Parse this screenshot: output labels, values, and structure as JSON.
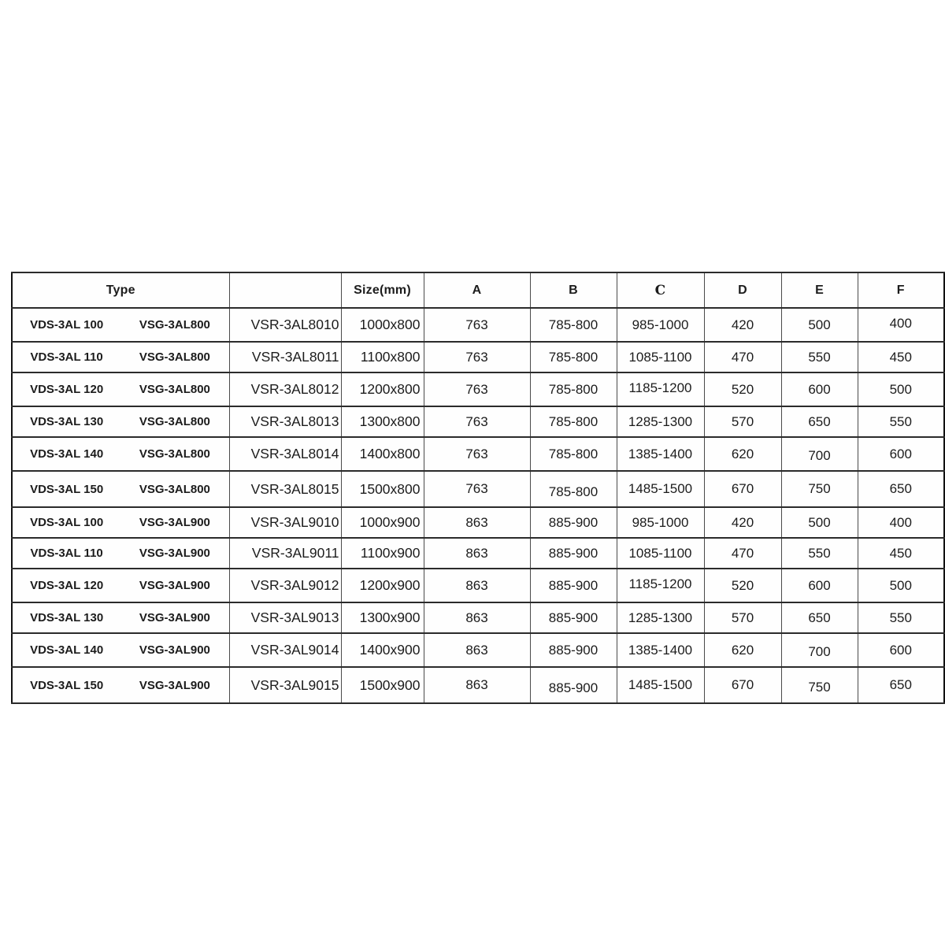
{
  "chart_data": {
    "type": "table",
    "title": "",
    "columns": [
      "Type",
      "",
      "Size(mm)",
      "A",
      "B",
      "C",
      "D",
      "E",
      "F"
    ],
    "rows": [
      {
        "type_vds": "VDS-3AL 100",
        "type_vsg": "VSG-3AL800",
        "code": "VSR-3AL8010",
        "size": "1000x800",
        "a": "763",
        "b": "785-800",
        "c": "985-1000",
        "d": "420",
        "e": "500",
        "f": "400"
      },
      {
        "type_vds": "VDS-3AL 110",
        "type_vsg": "VSG-3AL800",
        "code": "VSR-3AL8011",
        "size": "1100x800",
        "a": "763",
        "b": "785-800",
        "c": "1085-1100",
        "d": "470",
        "e": "550",
        "f": "450"
      },
      {
        "type_vds": "VDS-3AL 120",
        "type_vsg": "VSG-3AL800",
        "code": "VSR-3AL8012",
        "size": "1200x800",
        "a": "763",
        "b": "785-800",
        "c": "1185-1200",
        "d": "520",
        "e": "600",
        "f": "500"
      },
      {
        "type_vds": "VDS-3AL 130",
        "type_vsg": "VSG-3AL800",
        "code": "VSR-3AL8013",
        "size": "1300x800",
        "a": "763",
        "b": "785-800",
        "c": "1285-1300",
        "d": "570",
        "e": "650",
        "f": "550"
      },
      {
        "type_vds": "VDS-3AL 140",
        "type_vsg": "VSG-3AL800",
        "code": "VSR-3AL8014",
        "size": "1400x800",
        "a": "763",
        "b": "785-800",
        "c": "1385-1400",
        "d": "620",
        "e": "700",
        "f": "600"
      },
      {
        "type_vds": "VDS-3AL 150",
        "type_vsg": "VSG-3AL800",
        "code": "VSR-3AL8015",
        "size": "1500x800",
        "a": "763",
        "b": "785-800",
        "c": "1485-1500",
        "d": "670",
        "e": "750",
        "f": "650"
      },
      {
        "type_vds": "VDS-3AL 100",
        "type_vsg": "VSG-3AL900",
        "code": "VSR-3AL9010",
        "size": "1000x900",
        "a": "863",
        "b": "885-900",
        "c": "985-1000",
        "d": "420",
        "e": "500",
        "f": "400"
      },
      {
        "type_vds": "VDS-3AL 110",
        "type_vsg": "VSG-3AL900",
        "code": "VSR-3AL9011",
        "size": "1100x900",
        "a": "863",
        "b": "885-900",
        "c": "1085-1100",
        "d": "470",
        "e": "550",
        "f": "450"
      },
      {
        "type_vds": "VDS-3AL 120",
        "type_vsg": "VSG-3AL900",
        "code": "VSR-3AL9012",
        "size": "1200x900",
        "a": "863",
        "b": "885-900",
        "c": "1185-1200",
        "d": "520",
        "e": "600",
        "f": "500"
      },
      {
        "type_vds": "VDS-3AL 130",
        "type_vsg": "VSG-3AL900",
        "code": "VSR-3AL9013",
        "size": "1300x900",
        "a": "863",
        "b": "885-900",
        "c": "1285-1300",
        "d": "570",
        "e": "650",
        "f": "550"
      },
      {
        "type_vds": "VDS-3AL 140",
        "type_vsg": "VSG-3AL900",
        "code": "VSR-3AL9014",
        "size": "1400x900",
        "a": "863",
        "b": "885-900",
        "c": "1385-1400",
        "d": "620",
        "e": "700",
        "f": "600"
      },
      {
        "type_vds": "VDS-3AL 150",
        "type_vsg": "VSG-3AL900",
        "code": "VSR-3AL9015",
        "size": "1500x900",
        "a": "863",
        "b": "885-900",
        "c": "1485-1500",
        "d": "670",
        "e": "750",
        "f": "650"
      }
    ]
  }
}
